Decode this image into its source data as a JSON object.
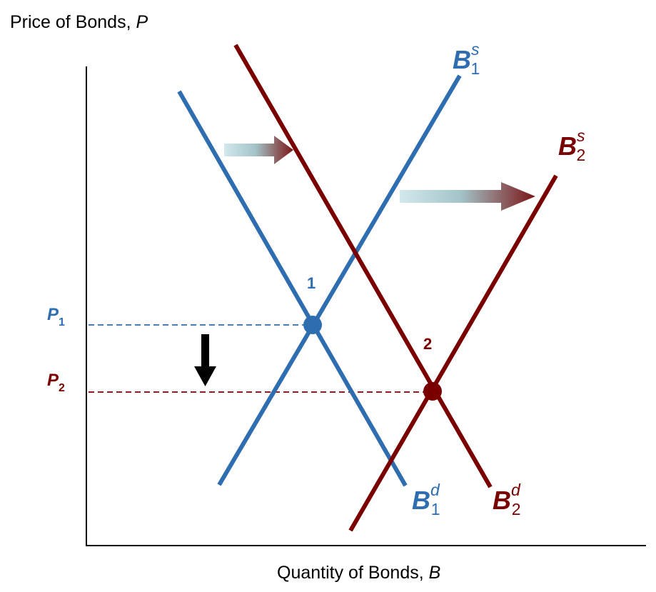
{
  "axes": {
    "y_title": "Price of Bonds, ",
    "y_var": "P",
    "x_title": "Quantity of Bonds, ",
    "x_var": "B"
  },
  "curves": {
    "supply1": {
      "main": "B",
      "sub": "1",
      "sup": "s",
      "color": "#2e6db0"
    },
    "supply2": {
      "main": "B",
      "sub": "2",
      "sup": "s",
      "color": "#7a0000"
    },
    "demand1": {
      "main": "B",
      "sub": "1",
      "sup": "d",
      "color": "#2e6db0"
    },
    "demand2": {
      "main": "B",
      "sub": "2",
      "sup": "d",
      "color": "#7a0000"
    }
  },
  "equilibria": {
    "point1": {
      "label": "1",
      "color": "#2e6db0"
    },
    "point2": {
      "label": "2",
      "color": "#7a0000"
    }
  },
  "prices": {
    "p1": {
      "main": "P",
      "sub": "1",
      "color": "#2e6db0"
    },
    "p2": {
      "main": "P",
      "sub": "2",
      "color": "#7a0000"
    }
  }
}
